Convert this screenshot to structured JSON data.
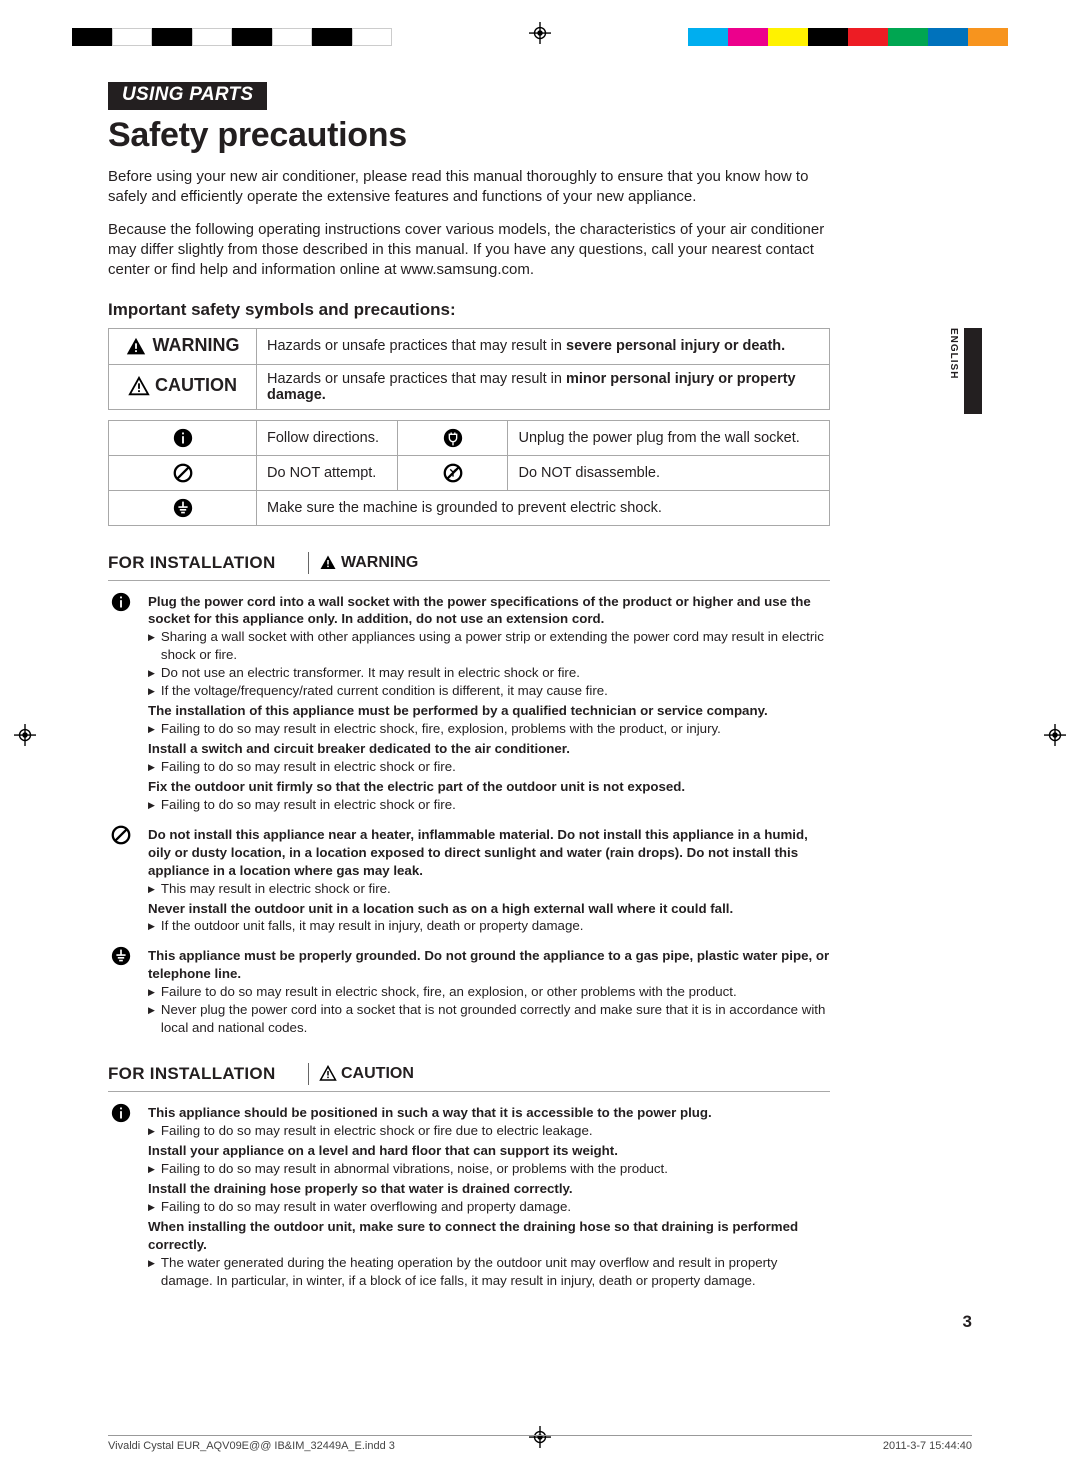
{
  "color_bars_left": [
    "#000000",
    "#ffffff",
    "#000000",
    "#ffffff",
    "#000000",
    "#ffffff",
    "#000000",
    "#ffffff"
  ],
  "color_bars_right": [
    "#00aeef",
    "#ec008c",
    "#fff200",
    "#000000",
    "#ed1c24",
    "#00a651",
    "#0072bc",
    "#f7941e"
  ],
  "section_tag": "USING PARTS",
  "title": "Safety precautions",
  "intro1": "Before using your new air conditioner, please read this manual thoroughly to ensure that you know how to safely and efficiently operate the extensive features and functions of your new appliance.",
  "intro2": "Because the following operating instructions cover various models, the characteristics of your air conditioner may differ slightly from those described in this manual. If you have any questions, call your nearest contact center or find help and information online at www.samsung.com.",
  "sub_head": "Important safety symbols and precautions:",
  "lang_tab": "ENGLISH",
  "defs": {
    "warning_label": "WARNING",
    "warning_text_pre": "Hazards or unsafe practices that may result in ",
    "warning_text_bold": "severe personal injury or death.",
    "caution_label": "CAUTION",
    "caution_text_pre": "Hazards or unsafe practices that may result in ",
    "caution_text_bold": "minor personal injury or property damage."
  },
  "symbols": {
    "follow": "Follow directions.",
    "unplug": "Unplug the power plug from the wall socket.",
    "dont_attempt": "Do NOT attempt.",
    "dont_disassemble": "Do NOT disassemble.",
    "ground": "Make sure the machine is grounded to prevent electric shock."
  },
  "install_warn_hdr": "FOR INSTALLATION",
  "warn_label": "WARNING",
  "caution_label": "CAUTION",
  "warn_items": [
    {
      "icon": "info",
      "bold1": "Plug the power cord into a wall socket with the power specifications of the product or higher and use the socket for this appliance only. In addition, do not use an extension cord.",
      "bullets1": [
        "Sharing a wall socket with other appliances using a power strip or extending the power cord may result in electric shock or fire.",
        "Do not use an electric transformer. It may result in electric shock or fire.",
        "If the voltage/frequency/rated current condition is different, it may cause fire."
      ],
      "bold2": "The installation of this appliance must be performed by a qualified technician or service company.",
      "bullets2": [
        "Failing to do so may result in electric shock, fire, explosion, problems with the product, or injury."
      ],
      "bold3": "Install a switch and circuit breaker dedicated to the air conditioner.",
      "bullets3": [
        "Failing to do so may result in electric shock or fire."
      ],
      "bold4": "Fix the outdoor unit firmly so that the electric part of the outdoor unit is not exposed.",
      "bullets4": [
        "Failing to do so may result in electric shock or fire."
      ]
    },
    {
      "icon": "prohibit",
      "bold1": "Do not install this appliance near a heater, inflammable material. Do not install this appliance in a humid, oily or dusty location, in a location exposed to direct sunlight and water (rain drops). Do not install this appliance in a location where gas may leak.",
      "bullets1": [
        "This may result in electric shock or fire."
      ],
      "bold2": "Never install the outdoor unit in a location such as on a high external wall where it could fall.",
      "bullets2": [
        "If the outdoor unit falls, it may result in injury, death or property damage."
      ]
    },
    {
      "icon": "ground",
      "bold1": "This appliance must be properly grounded. Do not ground the appliance to a gas pipe, plastic water pipe, or telephone line.",
      "bullets1": [
        "Failure to do so may result in electric shock, fire, an explosion, or other problems with the product.",
        "Never plug the power cord into a socket that is not grounded correctly and make sure that it is in accordance with local and national codes."
      ]
    }
  ],
  "install_caution_hdr": "FOR INSTALLATION",
  "caution_items": [
    {
      "icon": "info",
      "bold1": "This appliance should be positioned in such a way that it is accessible to the power plug.",
      "bullets1": [
        "Failing to do so may result in electric shock or fire due to electric leakage."
      ],
      "bold2": "Install your appliance on a level and hard floor that can support its weight.",
      "bullets2": [
        "Failing to do so may result in abnormal vibrations, noise, or problems with the product."
      ],
      "bold3": "Install the draining hose properly so that water is drained correctly.",
      "bullets3": [
        "Failing to do so may result in water overflowing and property damage."
      ],
      "bold4": "When installing the outdoor unit, make sure to connect the draining hose so that draining is performed correctly.",
      "bullets4": [
        "The water generated during the heating operation by the outdoor unit may overflow and result in property damage. In particular, in winter, if a block of ice falls, it may result in injury, death or property damage."
      ]
    }
  ],
  "page_num": "3",
  "footer_left": "Vivaldi Cystal EUR_AQV09E@@ IB&IM_32449A_E.indd   3",
  "footer_right": "2011-3-7   15:44:40"
}
